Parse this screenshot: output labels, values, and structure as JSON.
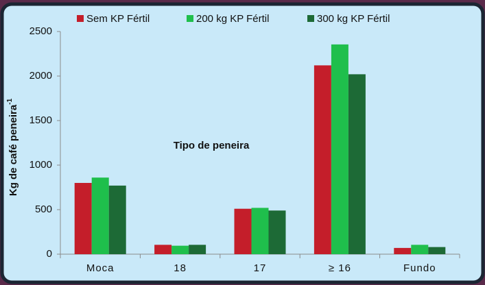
{
  "chart_data": {
    "type": "bar",
    "y_label": "Kg de café peneira",
    "y_label_sup": "-1",
    "x_label": "Tipo de peneira",
    "categories": [
      "Moca",
      "18",
      "17",
      "≥ 16",
      "Fundo"
    ],
    "series": [
      {
        "name": "Sem KP Fértil",
        "color": "#c41e2a",
        "values": [
          800,
          105,
          510,
          2120,
          70
        ]
      },
      {
        "name": "200 kg KP Fértil",
        "color": "#1fbf4c",
        "values": [
          860,
          95,
          520,
          2355,
          105
        ]
      },
      {
        "name": "300 kg KP Fértil",
        "color": "#1d6a36",
        "values": [
          770,
          105,
          490,
          2020,
          80
        ]
      }
    ],
    "ylim": [
      0,
      2500
    ],
    "yticks": [
      0,
      500,
      1000,
      1500,
      2000,
      2500
    ],
    "grid": false
  }
}
